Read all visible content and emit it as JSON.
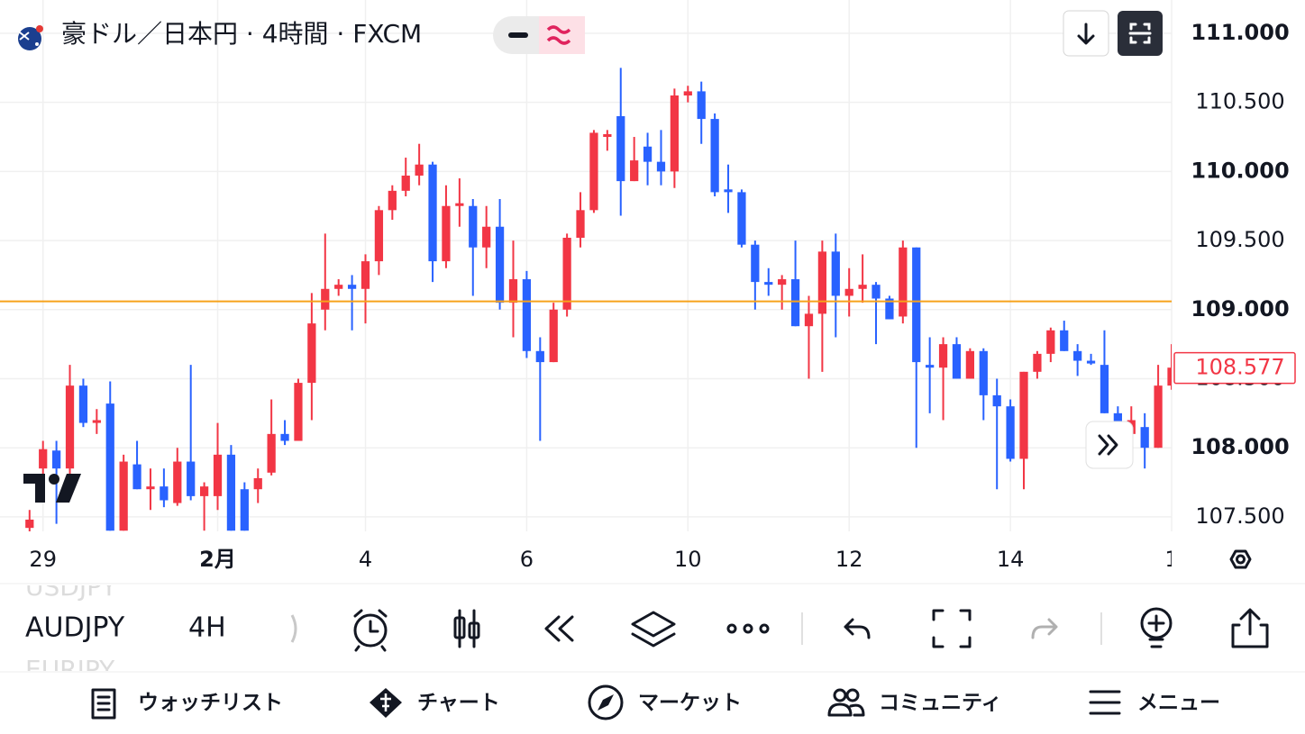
{
  "header": {
    "title": "豪ドル／日本円 · 4時間 · FXCM"
  },
  "chart_data": {
    "type": "candlestick",
    "up_color": "#f23645",
    "down_color": "#2962ff",
    "price_line_color": "#f7a21b",
    "grid": true,
    "xlim": [
      -2.2,
      85.0
    ],
    "ylim": [
      107.395,
      111.241
    ],
    "xticks": [
      {
        "value": 1,
        "label": "29"
      },
      {
        "value": 14,
        "label": "2月"
      },
      {
        "value": 25,
        "label": "4"
      },
      {
        "value": 37,
        "label": "6"
      },
      {
        "value": 49,
        "label": "10"
      },
      {
        "value": 61,
        "label": "12"
      },
      {
        "value": 73,
        "label": "14"
      },
      {
        "value": 85,
        "label": "1"
      }
    ],
    "yticks": [
      {
        "value": 107.5,
        "label": "107.500"
      },
      {
        "value": 108,
        "label": "108.000"
      },
      {
        "value": 108.5,
        "label": "108.500"
      },
      {
        "value": 109,
        "label": "109.000"
      },
      {
        "value": 109.5,
        "label": "109.500"
      },
      {
        "value": 110,
        "label": "110.000"
      },
      {
        "value": 110.5,
        "label": "110.500"
      },
      {
        "value": 111,
        "label": "111.000"
      }
    ],
    "price_line": 109.06,
    "last_price": 108.577,
    "open": [
      107.42,
      107.85,
      107.98,
      107.85,
      108.45,
      108.18,
      108.32,
      107.4,
      107.88,
      107.7,
      107.72,
      107.6,
      107.9,
      107.65,
      107.65,
      107.95,
      107.7,
      107.7,
      107.82,
      108.1,
      108.05,
      108.47,
      109.0,
      109.15,
      109.18,
      109.15,
      109.35,
      109.72,
      109.86,
      109.97,
      110.05,
      109.35,
      109.75,
      109.75,
      109.45,
      109.6,
      109.05,
      109.22,
      108.7,
      108.62,
      109.0,
      109.52,
      109.72,
      110.25,
      110.4,
      109.93,
      110.18,
      110.07,
      110.0,
      110.55,
      110.58,
      110.38,
      109.87,
      109.85,
      109.47,
      109.2,
      109.18,
      109.22,
      108.88,
      108.97,
      109.42,
      109.1,
      109.15,
      109.18,
      109.08,
      108.95,
      109.45,
      108.6,
      108.58,
      108.75,
      108.5,
      108.7,
      108.38,
      108.3,
      107.92,
      108.55,
      108.68,
      108.85,
      108.7,
      108.63,
      108.6,
      108.25,
      108.1,
      108.15,
      108.0,
      108.45
    ],
    "high": [
      107.55,
      108.05,
      108.05,
      108.6,
      108.5,
      108.28,
      108.48,
      107.95,
      108.05,
      107.85,
      107.85,
      108.0,
      108.6,
      107.75,
      108.18,
      108.02,
      107.75,
      107.85,
      108.35,
      108.2,
      108.5,
      109.12,
      109.55,
      109.22,
      109.25,
      109.4,
      109.75,
      109.9,
      110.1,
      110.2,
      110.07,
      109.9,
      109.95,
      109.8,
      109.75,
      109.8,
      109.5,
      109.28,
      108.8,
      109.05,
      109.55,
      109.85,
      110.3,
      110.3,
      110.75,
      110.25,
      110.28,
      110.3,
      110.6,
      110.62,
      110.65,
      110.42,
      110.05,
      109.87,
      109.5,
      109.3,
      109.25,
      109.5,
      109.1,
      109.5,
      109.55,
      109.3,
      109.4,
      109.2,
      109.1,
      109.5,
      109.45,
      108.8,
      108.8,
      108.8,
      108.72,
      108.72,
      108.5,
      108.35,
      108.55,
      108.7,
      108.87,
      108.92,
      108.75,
      108.68,
      108.85,
      108.3,
      108.3,
      108.25,
      108.6,
      108.75
    ],
    "low": [
      107.38,
      107.8,
      107.45,
      107.8,
      108.15,
      108.1,
      107.4,
      107.4,
      107.7,
      107.55,
      107.57,
      107.58,
      107.62,
      107.4,
      107.55,
      107.4,
      107.4,
      107.6,
      107.8,
      108.02,
      108.05,
      108.2,
      108.85,
      109.1,
      108.85,
      108.9,
      109.25,
      109.65,
      109.82,
      109.9,
      109.2,
      109.3,
      109.6,
      109.1,
      109.3,
      109.0,
      108.8,
      108.65,
      108.05,
      108.62,
      108.95,
      109.45,
      109.7,
      110.15,
      109.68,
      109.93,
      109.9,
      109.9,
      109.88,
      110.5,
      110.2,
      109.82,
      109.7,
      109.45,
      109.0,
      109.1,
      109.0,
      108.88,
      108.5,
      108.55,
      108.8,
      108.95,
      109.05,
      108.75,
      108.93,
      108.9,
      108.0,
      108.25,
      108.2,
      108.5,
      108.5,
      108.2,
      107.7,
      107.9,
      107.7,
      108.5,
      108.62,
      108.7,
      108.52,
      108.6,
      108.25,
      108.05,
      108.0,
      107.85,
      108.0,
      108.42
    ],
    "close": [
      107.48,
      107.99,
      107.85,
      108.45,
      108.18,
      108.2,
      107.4,
      107.9,
      107.7,
      107.72,
      107.62,
      107.9,
      107.65,
      107.72,
      107.95,
      107.4,
      107.4,
      107.78,
      108.1,
      108.05,
      108.47,
      108.9,
      109.15,
      109.18,
      109.15,
      109.35,
      109.72,
      109.86,
      109.97,
      110.05,
      109.35,
      109.75,
      109.77,
      109.45,
      109.6,
      109.05,
      109.22,
      108.7,
      108.62,
      109.0,
      109.52,
      109.72,
      110.28,
      110.27,
      109.93,
      110.08,
      110.07,
      110.0,
      110.55,
      110.58,
      110.38,
      109.85,
      109.85,
      109.47,
      109.2,
      109.18,
      109.22,
      108.88,
      108.97,
      109.42,
      109.1,
      109.15,
      109.18,
      109.08,
      108.93,
      109.45,
      108.62,
      108.58,
      108.75,
      108.5,
      108.7,
      108.38,
      108.3,
      107.92,
      108.55,
      108.68,
      108.85,
      108.7,
      108.63,
      108.61,
      108.25,
      108.15,
      108.2,
      108.0,
      108.45,
      108.58
    ]
  },
  "toolbar": {
    "symbol": "AUDJPY",
    "interval": "4H",
    "symbol_above": "USDJPY",
    "symbol_below": "EURJPY"
  },
  "nav": [
    "ウォッチリスト",
    "チャート",
    "マーケット",
    "コミュニティ",
    "メニュー"
  ]
}
